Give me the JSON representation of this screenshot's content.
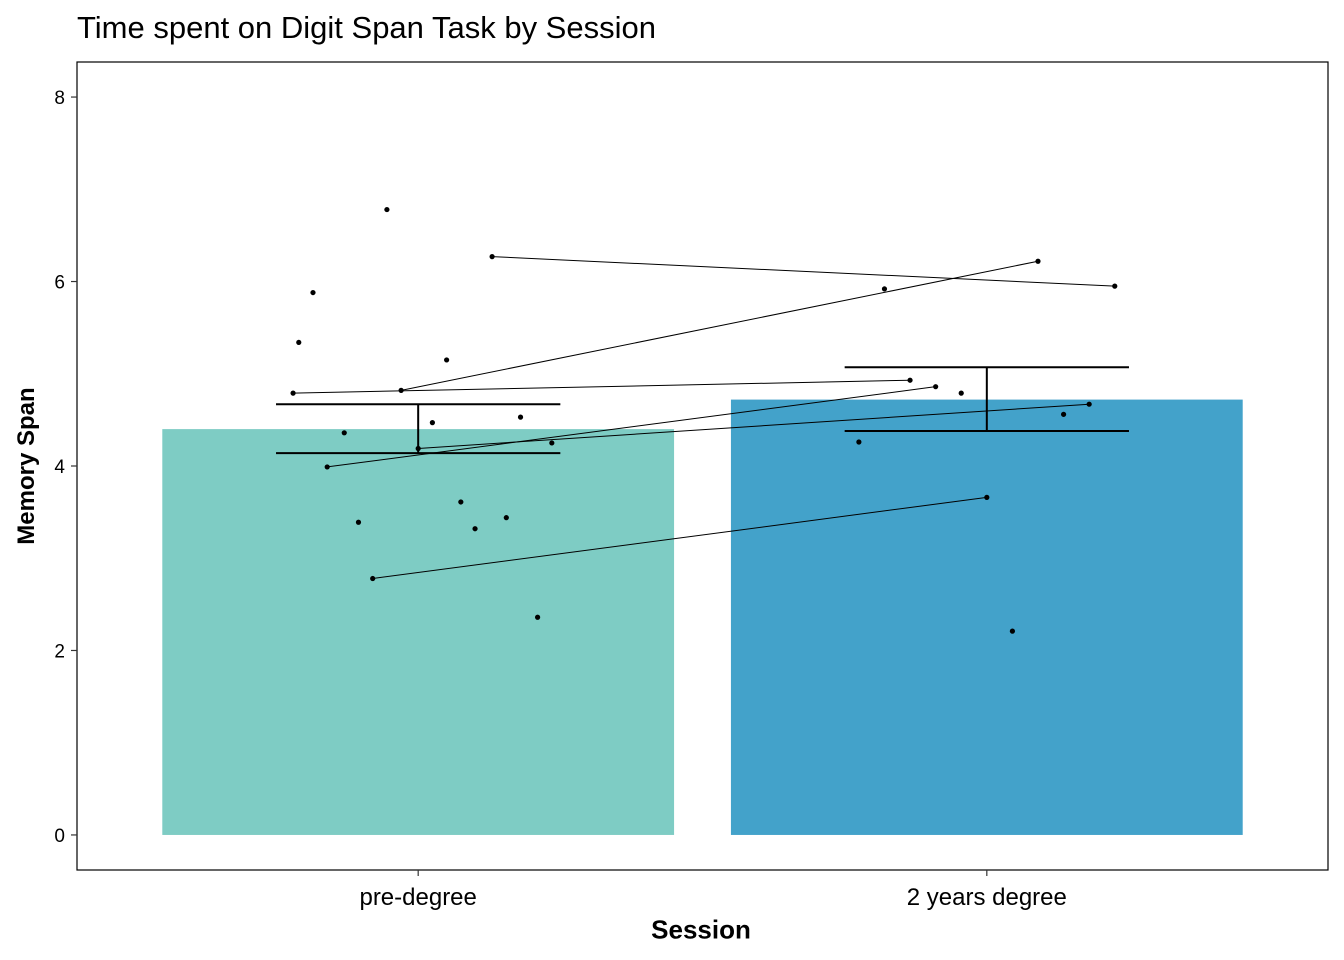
{
  "chart_data": {
    "type": "bar",
    "title": "Time spent on Digit Span Task by Session",
    "xlabel": "Session",
    "ylabel": "Memory Span",
    "categories": [
      "pre-degree",
      "2 years degree"
    ],
    "values": [
      4.4,
      4.72
    ],
    "bar_colors": [
      "#7ECCC4",
      "#43A2CA"
    ],
    "error_bars": [
      {
        "lower": 4.14,
        "upper": 4.67
      },
      {
        "lower": 4.38,
        "upper": 5.07
      }
    ],
    "ylim": [
      -0.38,
      8.38
    ],
    "yticks": [
      "0",
      "2",
      "4",
      "6",
      "8"
    ],
    "grid": false,
    "points": [
      {
        "group": 0,
        "offset": -0.22,
        "y": 4.79
      },
      {
        "group": 0,
        "offset": -0.21,
        "y": 5.34
      },
      {
        "group": 0,
        "offset": -0.185,
        "y": 5.88
      },
      {
        "group": 0,
        "offset": -0.16,
        "y": 3.99
      },
      {
        "group": 0,
        "offset": -0.13,
        "y": 4.36
      },
      {
        "group": 0,
        "offset": -0.105,
        "y": 3.39
      },
      {
        "group": 0,
        "offset": -0.08,
        "y": 2.78
      },
      {
        "group": 0,
        "offset": -0.055,
        "y": 6.78
      },
      {
        "group": 0,
        "offset": -0.03,
        "y": 4.82
      },
      {
        "group": 0,
        "offset": 0.0,
        "y": 4.19
      },
      {
        "group": 0,
        "offset": 0.025,
        "y": 4.47
      },
      {
        "group": 0,
        "offset": 0.05,
        "y": 5.15
      },
      {
        "group": 0,
        "offset": 0.075,
        "y": 3.61
      },
      {
        "group": 0,
        "offset": 0.1,
        "y": 3.32
      },
      {
        "group": 0,
        "offset": 0.13,
        "y": 6.27
      },
      {
        "group": 0,
        "offset": 0.155,
        "y": 3.44
      },
      {
        "group": 0,
        "offset": 0.18,
        "y": 4.53
      },
      {
        "group": 0,
        "offset": 0.21,
        "y": 2.36
      },
      {
        "group": 0,
        "offset": 0.235,
        "y": 4.25
      },
      {
        "group": 1,
        "offset": -0.225,
        "y": 4.26
      },
      {
        "group": 1,
        "offset": -0.18,
        "y": 5.92
      },
      {
        "group": 1,
        "offset": -0.135,
        "y": 4.93
      },
      {
        "group": 1,
        "offset": -0.09,
        "y": 4.86
      },
      {
        "group": 1,
        "offset": -0.045,
        "y": 4.79
      },
      {
        "group": 1,
        "offset": 0.0,
        "y": 3.66
      },
      {
        "group": 1,
        "offset": 0.045,
        "y": 2.21
      },
      {
        "group": 1,
        "offset": 0.09,
        "y": 6.22
      },
      {
        "group": 1,
        "offset": 0.135,
        "y": 4.56
      },
      {
        "group": 1,
        "offset": 0.18,
        "y": 4.67
      },
      {
        "group": 1,
        "offset": 0.225,
        "y": 5.95
      }
    ],
    "paired_lines": [
      {
        "x1": -0.22,
        "y1": 4.79,
        "x2": -0.135,
        "y2": 4.93
      },
      {
        "x1": -0.03,
        "y1": 4.82,
        "x2": 0.09,
        "y2": 6.22
      },
      {
        "x1": 0.13,
        "y1": 6.27,
        "x2": 0.225,
        "y2": 5.95
      },
      {
        "x1": -0.16,
        "y1": 3.99,
        "x2": -0.09,
        "y2": 4.86
      },
      {
        "x1": 0.0,
        "y1": 4.19,
        "x2": 0.18,
        "y2": 4.67
      },
      {
        "x1": -0.08,
        "y1": 2.78,
        "x2": 0.0,
        "y2": 3.66
      }
    ]
  }
}
